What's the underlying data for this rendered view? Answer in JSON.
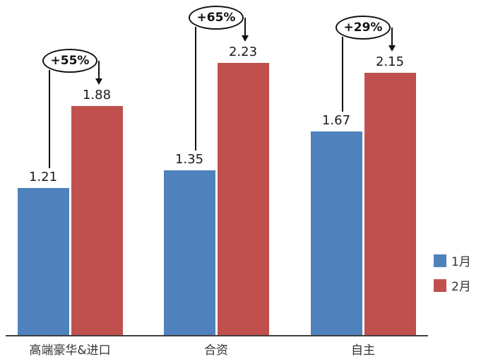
{
  "chart_data": {
    "type": "bar",
    "title": "",
    "xlabel": "",
    "ylabel": "",
    "grid": false,
    "legend_position": "right",
    "ylim": [
      0,
      2.4
    ],
    "categories": [
      "高端豪华&进口",
      "合资",
      "自主"
    ],
    "series": [
      {
        "name": "1月",
        "color": "#4F81BD",
        "values": [
          1.21,
          1.35,
          1.67
        ]
      },
      {
        "name": "2月",
        "color": "#C0504D",
        "values": [
          1.88,
          2.23,
          2.15
        ]
      }
    ],
    "annotations": [
      {
        "label": "+55%"
      },
      {
        "label": "+65%"
      },
      {
        "label": "+29%"
      }
    ]
  }
}
